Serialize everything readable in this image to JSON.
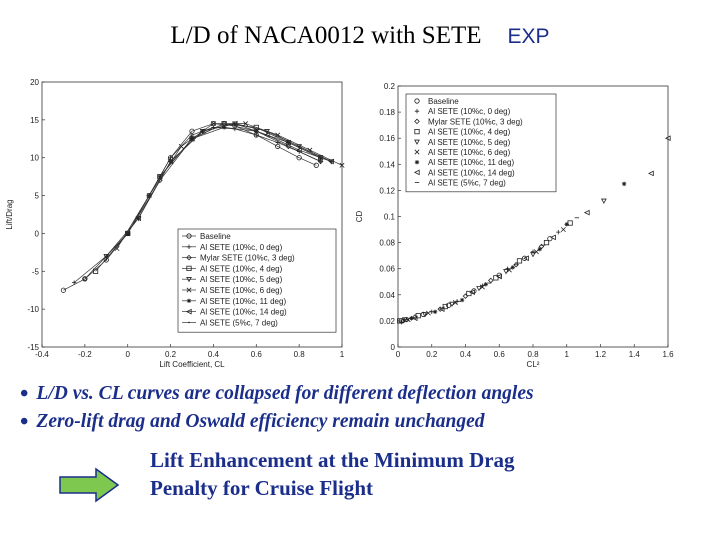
{
  "slide": {
    "title": "L/D of NACA0012 with SETE",
    "title_tag": "EXP",
    "bullets": [
      "L/D vs. CL curves are collapsed for different deflection angles",
      "Zero-lift drag and Oswald efficiency remain unchanged"
    ],
    "conclusion": [
      "Lift Enhancement at the Minimum Drag",
      "Penalty for Cruise Flight"
    ]
  },
  "colors": {
    "text_blue": "#1a2e8a",
    "arrow_green": "#7ec850",
    "arrow_outline": "#1a2e8a"
  },
  "chart_data": [
    {
      "type": "line",
      "xlabel": "Lift Coefficient, CL",
      "ylabel": "Lift/Drag",
      "xlim": [
        -0.4,
        1.0
      ],
      "ylim": [
        -15,
        20
      ],
      "xticks": [
        -0.4,
        -0.2,
        0,
        0.2,
        0.4,
        0.6,
        0.8,
        1
      ],
      "xtick_labels": [
        "-0.4",
        "-0.2",
        "0",
        "0.2",
        "0.4",
        "0.6",
        "0.8",
        "1"
      ],
      "yticks": [
        -15,
        -10,
        -5,
        0,
        5,
        10,
        15,
        20
      ],
      "ytick_labels": [
        "-15",
        "-10",
        "-5",
        "0",
        "5",
        "10",
        "15",
        "20"
      ],
      "grid": false,
      "legend_position": "bottom-right",
      "series": [
        {
          "name": "Baseline",
          "marker": "circle",
          "x": [
            -0.3,
            -0.2,
            -0.1,
            0,
            0.1,
            0.2,
            0.3,
            0.4,
            0.5,
            0.6,
            0.7,
            0.8,
            0.88
          ],
          "y": [
            -7.5,
            -6,
            -3.5,
            0,
            5,
            10,
            13.5,
            14.5,
            14.2,
            13,
            11.5,
            10,
            9
          ]
        },
        {
          "name": "Al SETE (10%c, 0 deg)",
          "marker": "plus",
          "x": [
            -0.25,
            -0.1,
            0,
            0.1,
            0.2,
            0.3,
            0.4,
            0.5,
            0.6,
            0.7,
            0.8,
            0.9
          ],
          "y": [
            -6.5,
            -3,
            0,
            5,
            10,
            13,
            14,
            13.8,
            13,
            12,
            10.8,
            9.5
          ]
        },
        {
          "name": "Mylar SETE (10%c, 3 deg)",
          "marker": "diamond",
          "x": [
            -0.2,
            0,
            0.15,
            0.3,
            0.45,
            0.6,
            0.75,
            0.9
          ],
          "y": [
            -6,
            0,
            7,
            12.5,
            14.5,
            13.5,
            11.5,
            9.5
          ]
        },
        {
          "name": "Al SETE (10%c, 4 deg)",
          "marker": "square",
          "x": [
            -0.15,
            0,
            0.15,
            0.3,
            0.45,
            0.6,
            0.75,
            0.9
          ],
          "y": [
            -5,
            0,
            7.5,
            12.5,
            14.5,
            14,
            12,
            10
          ]
        },
        {
          "name": "Al SETE (10%c, 5 deg)",
          "marker": "tri-down",
          "x": [
            -0.1,
            0.05,
            0.2,
            0.35,
            0.5,
            0.65,
            0.8,
            0.95
          ],
          "y": [
            -3,
            2,
            9.5,
            13.5,
            14.5,
            13.5,
            11.5,
            9.5
          ]
        },
        {
          "name": "Al SETE (10%c, 6 deg)",
          "marker": "x",
          "x": [
            -0.05,
            0.1,
            0.25,
            0.4,
            0.55,
            0.7,
            0.85,
            1.0
          ],
          "y": [
            -2,
            5,
            11.5,
            14.5,
            14.5,
            13,
            11,
            9
          ]
        },
        {
          "name": "Al SETE (10%c, 11 deg)",
          "marker": "star",
          "x": [
            0,
            0.15,
            0.3,
            0.45,
            0.6,
            0.75,
            0.9
          ],
          "y": [
            0,
            7.5,
            12.5,
            14,
            13.5,
            12,
            10
          ]
        },
        {
          "name": "Al SETE (10%c, 14 deg)",
          "marker": "tri-left",
          "x": [
            0.05,
            0.2,
            0.35,
            0.5,
            0.65,
            0.8,
            0.95
          ],
          "y": [
            2,
            9.5,
            13.5,
            14.5,
            13,
            11,
            9.5
          ]
        },
        {
          "name": "Al SETE (5%c, 7 deg)",
          "marker": "none",
          "x": [
            -0.1,
            0.05,
            0.2,
            0.35,
            0.5,
            0.65,
            0.8,
            0.95
          ],
          "y": [
            -3.5,
            2,
            9.5,
            13.5,
            14.5,
            13.5,
            11.5,
            9.5
          ]
        }
      ]
    },
    {
      "type": "scatter",
      "xlabel": "CL²",
      "ylabel": "CD",
      "xlim": [
        0,
        1.6
      ],
      "ylim": [
        0,
        0.2
      ],
      "xticks": [
        0,
        0.2,
        0.4,
        0.6,
        0.8,
        1,
        1.2,
        1.4,
        1.6
      ],
      "xtick_labels": [
        "0",
        "0.2",
        "0.4",
        "0.6",
        "0.8",
        "1",
        "1.2",
        "1.4",
        "1.6"
      ],
      "yticks": [
        0,
        0.02,
        0.04,
        0.06,
        0.08,
        0.1,
        0.12,
        0.14,
        0.16,
        0.18,
        0.2
      ],
      "ytick_labels": [
        "0",
        "0.02",
        "0.04",
        "0.06",
        "0.08",
        "0.1",
        "0.12",
        "0.14",
        "0.16",
        "0.18",
        "0.2"
      ],
      "grid": false,
      "legend_position": "top-right",
      "series": [
        {
          "name": "Baseline",
          "marker": "circle",
          "x": [
            0.02,
            0.05,
            0.15,
            0.3,
            0.45,
            0.6,
            0.75,
            0.9
          ],
          "y": [
            0.02,
            0.021,
            0.025,
            0.032,
            0.043,
            0.055,
            0.068,
            0.083
          ]
        },
        {
          "name": "Al SETE (10%c, 0 deg)",
          "marker": "plus",
          "x": [
            0.02,
            0.08,
            0.2,
            0.35,
            0.5,
            0.65,
            0.8,
            0.95
          ],
          "y": [
            0.019,
            0.022,
            0.027,
            0.035,
            0.047,
            0.06,
            0.073,
            0.088
          ]
        },
        {
          "name": "Mylar SETE (10%c, 3 deg)",
          "marker": "diamond",
          "x": [
            0.03,
            0.1,
            0.25,
            0.4,
            0.55,
            0.7,
            0.85
          ],
          "y": [
            0.02,
            0.023,
            0.029,
            0.039,
            0.051,
            0.063,
            0.077
          ]
        },
        {
          "name": "Al SETE (10%c, 4 deg)",
          "marker": "square",
          "x": [
            0.01,
            0.12,
            0.28,
            0.42,
            0.58,
            0.72,
            0.88,
            1.02
          ],
          "y": [
            0.02,
            0.024,
            0.031,
            0.041,
            0.053,
            0.066,
            0.08,
            0.095
          ]
        },
        {
          "name": "Al SETE (10%c, 5 deg)",
          "marker": "tri-down",
          "x": [
            0.04,
            0.16,
            0.32,
            0.48,
            0.64,
            0.8,
            1.22
          ],
          "y": [
            0.021,
            0.025,
            0.033,
            0.045,
            0.058,
            0.071,
            0.112
          ]
        },
        {
          "name": "Al SETE (10%c, 6 deg)",
          "marker": "x",
          "x": [
            0.06,
            0.18,
            0.34,
            0.5,
            0.66,
            0.82,
            0.98
          ],
          "y": [
            0.021,
            0.026,
            0.034,
            0.046,
            0.059,
            0.073,
            0.09
          ]
        },
        {
          "name": "Al SETE (10%c, 11 deg)",
          "marker": "star",
          "x": [
            0.08,
            0.22,
            0.38,
            0.52,
            0.68,
            0.84,
            1.0,
            1.34
          ],
          "y": [
            0.022,
            0.027,
            0.036,
            0.048,
            0.061,
            0.075,
            0.094,
            0.125
          ]
        },
        {
          "name": "Al SETE (10%c, 14 deg)",
          "marker": "tri-left",
          "x": [
            0.1,
            0.26,
            0.44,
            0.6,
            0.76,
            0.92,
            1.12,
            1.5,
            1.6
          ],
          "y": [
            0.022,
            0.029,
            0.042,
            0.054,
            0.068,
            0.084,
            0.103,
            0.133,
            0.16
          ]
        },
        {
          "name": "Al SETE (5%c, 7 deg)",
          "marker": "dash",
          "x": [
            0.05,
            0.2,
            0.36,
            0.54,
            0.7,
            0.86,
            1.06
          ],
          "y": [
            0.021,
            0.027,
            0.035,
            0.049,
            0.063,
            0.078,
            0.099
          ]
        }
      ]
    }
  ]
}
